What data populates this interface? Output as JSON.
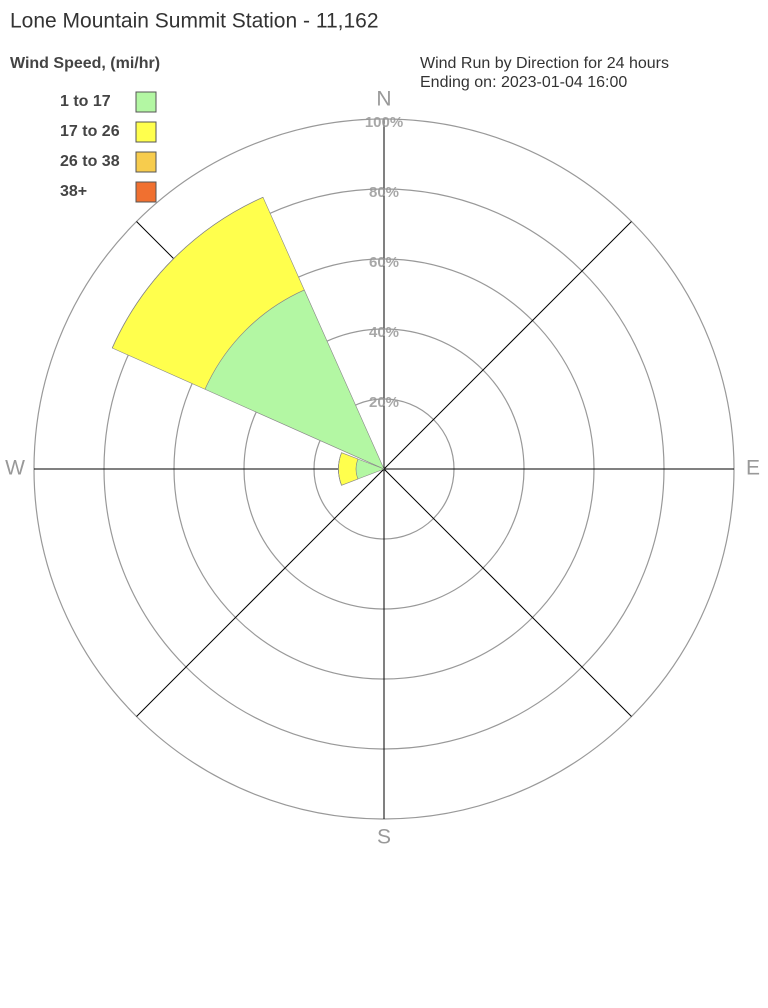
{
  "chart_data": {
    "type": "windrose",
    "title": "Lone Mountain Summit Station - 11,162",
    "legend_title": "Wind Speed, (mi/hr)",
    "subtitle": [
      "Wind Run by Direction for 24 hours",
      "Ending on: 2023-01-04 16:00"
    ],
    "categories": [
      "N",
      null,
      "E",
      null,
      "S",
      null,
      "W",
      null
    ],
    "series": [
      {
        "name": "1 to 17",
        "color": "#b3f7a3",
        "values": [
          0,
          0,
          0,
          0,
          0,
          0,
          8,
          56
        ]
      },
      {
        "name": "17 to 26",
        "color": "#ffff4d",
        "values": [
          0,
          0,
          0,
          0,
          0,
          0,
          5,
          29
        ]
      },
      {
        "name": "26 to 38",
        "color": "#f7cc4d",
        "values": [
          0,
          0,
          0,
          0,
          0,
          0,
          0,
          0
        ]
      },
      {
        "name": "38+",
        "color": "#f07030",
        "values": [
          0,
          0,
          0,
          0,
          0,
          0,
          0,
          0
        ]
      }
    ],
    "rlim": [
      0,
      100
    ],
    "rticks": [
      {
        "value": 20,
        "label": "20%"
      },
      {
        "value": 40,
        "label": "40%"
      },
      {
        "value": 60,
        "label": "60%"
      },
      {
        "value": 80,
        "label": "80%"
      },
      {
        "value": 100,
        "label": "100%"
      }
    ]
  }
}
